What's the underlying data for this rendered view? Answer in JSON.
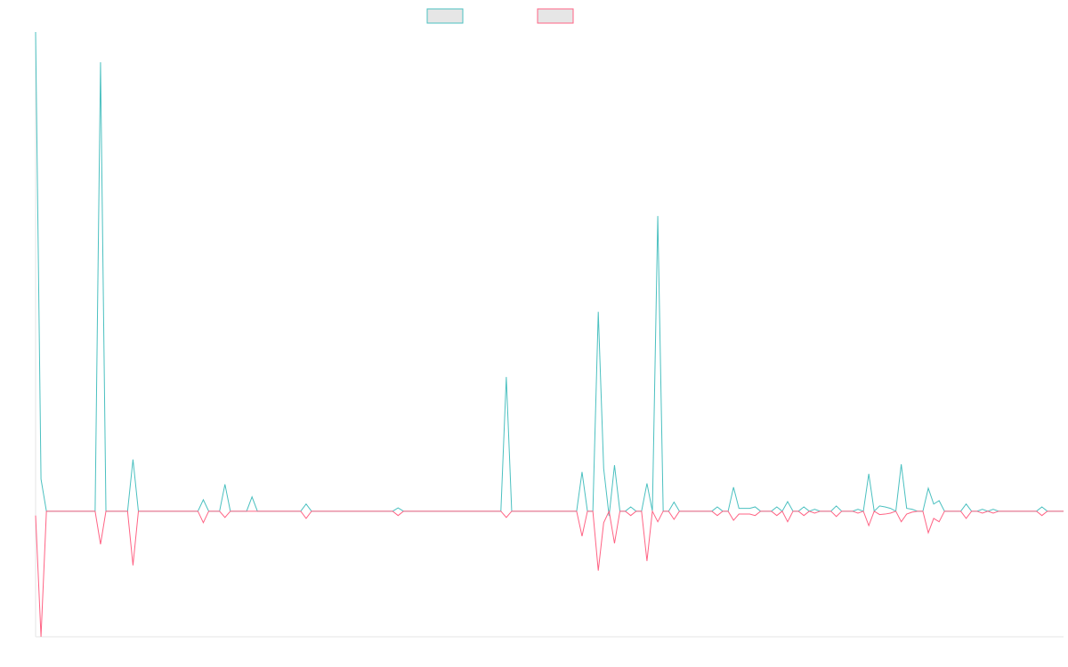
{
  "chart_data": {
    "type": "line",
    "x": [
      0,
      1,
      2,
      11,
      12,
      13,
      17,
      18,
      19,
      30,
      31,
      32,
      34,
      35,
      36,
      39,
      40,
      41,
      49,
      50,
      51,
      66,
      67,
      68,
      86,
      87,
      88,
      100,
      101,
      102,
      103,
      104,
      105,
      106,
      107,
      108,
      109,
      110,
      111,
      112,
      113,
      114,
      115,
      116,
      117,
      118,
      119,
      125,
      126,
      127,
      128,
      129,
      130,
      131,
      132,
      133,
      134,
      136,
      137,
      138,
      139,
      140,
      141,
      142,
      143,
      144,
      145,
      147,
      148,
      149,
      151,
      152,
      153,
      154,
      155,
      156,
      157,
      158,
      159,
      160,
      161,
      162,
      163,
      164,
      165,
      166,
      167,
      168,
      171,
      172,
      173,
      174,
      175,
      176,
      177,
      178,
      185,
      186,
      187,
      190
    ],
    "series": [
      {
        "color": "#4bc0c0",
        "values": [
          100,
          6.7,
          0,
          0,
          93.7,
          0,
          0,
          10.8,
          0,
          0,
          2.4,
          0,
          0,
          5.6,
          0,
          0,
          3,
          0,
          0,
          1.5,
          0,
          0,
          0.7,
          0,
          0,
          28,
          0,
          0,
          8.2,
          0,
          0,
          41.6,
          8.9,
          -1,
          9.6,
          0,
          0,
          0.9,
          0,
          0,
          5.8,
          0,
          61.6,
          0,
          0,
          1.9,
          0,
          0,
          0.9,
          0,
          0,
          5,
          0.6,
          0.6,
          0.6,
          0.9,
          0,
          0,
          0.9,
          0,
          2,
          0,
          0,
          0.9,
          0,
          0.4,
          0,
          0,
          1.1,
          0,
          0,
          0.4,
          0,
          7.8,
          0,
          1.1,
          0.9,
          0.6,
          0,
          9.8,
          0.6,
          0.4,
          0,
          0,
          4.8,
          1.5,
          2.2,
          0,
          0,
          1.5,
          0,
          0,
          0.4,
          0,
          0.4,
          0,
          0,
          0.9,
          0,
          0
        ]
      },
      {
        "color": "#ff6384",
        "values": [
          -0.9,
          -26.2,
          0,
          0,
          -6.9,
          0,
          0,
          -11.3,
          0,
          0,
          -2.4,
          0,
          0,
          -1.3,
          0,
          0,
          0,
          0,
          0,
          -1.5,
          0,
          0,
          -0.9,
          0,
          0,
          -1.3,
          0,
          0,
          -5.2,
          0,
          0,
          -12.4,
          -2.4,
          0,
          -6.7,
          0,
          0,
          -0.9,
          0,
          0,
          -10.4,
          0,
          -2.2,
          0,
          0,
          -1.7,
          0,
          0,
          -0.9,
          0,
          0,
          -1.9,
          -0.6,
          -0.6,
          -0.6,
          -0.9,
          0,
          0,
          -0.9,
          0,
          -2.2,
          0,
          0,
          -0.9,
          0,
          -0.4,
          0,
          0,
          -1.1,
          0,
          0,
          -0.4,
          0,
          -3,
          0,
          -0.7,
          -0.6,
          -0.4,
          0,
          -2.2,
          -0.6,
          -0.2,
          0,
          0,
          -4.5,
          -1.5,
          -2.2,
          0,
          0,
          -1.5,
          0,
          0,
          -0.4,
          0,
          -0.4,
          0,
          0,
          -0.9,
          0,
          0
        ]
      }
    ],
    "xlim": [
      0,
      190
    ],
    "ylim": [
      -26.2,
      100
    ]
  }
}
